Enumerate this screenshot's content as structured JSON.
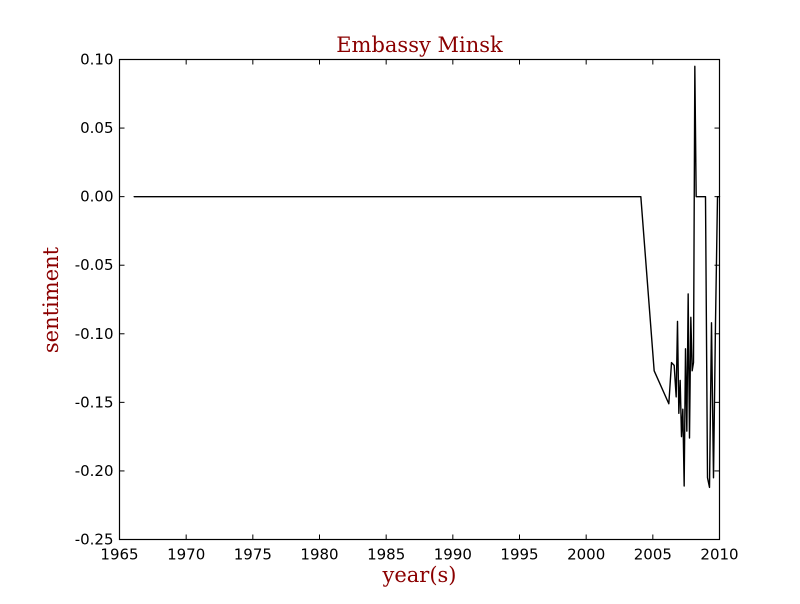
{
  "chart_data": {
    "type": "line",
    "title": "Embassy Minsk",
    "xlabel": "year(s)",
    "ylabel": "sentiment",
    "xlim": [
      1965,
      2010
    ],
    "ylim": [
      -0.25,
      0.1
    ],
    "x_ticks": [
      "1965",
      "1970",
      "1975",
      "1980",
      "1985",
      "1990",
      "1995",
      "2000",
      "2005",
      "2010"
    ],
    "y_ticks": [
      "0.10",
      "0.05",
      "0.00",
      "-0.05",
      "-0.10",
      "-0.15",
      "-0.20",
      "-0.25"
    ],
    "grid": false,
    "series": [
      {
        "color": "#000000",
        "x": [
          1966.1,
          2004.1,
          2005.1,
          2006.2,
          2006.4,
          2006.6,
          2006.75,
          2006.85,
          2006.95,
          2007.05,
          2007.15,
          2007.25,
          2007.35,
          2007.45,
          2007.55,
          2007.65,
          2007.75,
          2007.85,
          2007.95,
          2008.05,
          2008.15,
          2008.25,
          2008.35,
          2008.45,
          2008.6,
          2008.95,
          2009.1,
          2009.25,
          2009.4,
          2009.55,
          2009.7,
          2009.85,
          2010.0
        ],
        "y": [
          0.0,
          0.0,
          -0.127,
          -0.151,
          -0.121,
          -0.123,
          -0.146,
          -0.091,
          -0.158,
          -0.134,
          -0.175,
          -0.155,
          -0.211,
          -0.111,
          -0.171,
          -0.071,
          -0.176,
          -0.088,
          -0.127,
          -0.121,
          0.095,
          0.0,
          0.0,
          0.0,
          0.0,
          0.0,
          -0.205,
          -0.212,
          -0.092,
          -0.205,
          -0.092,
          0.0,
          0.0
        ]
      }
    ]
  }
}
